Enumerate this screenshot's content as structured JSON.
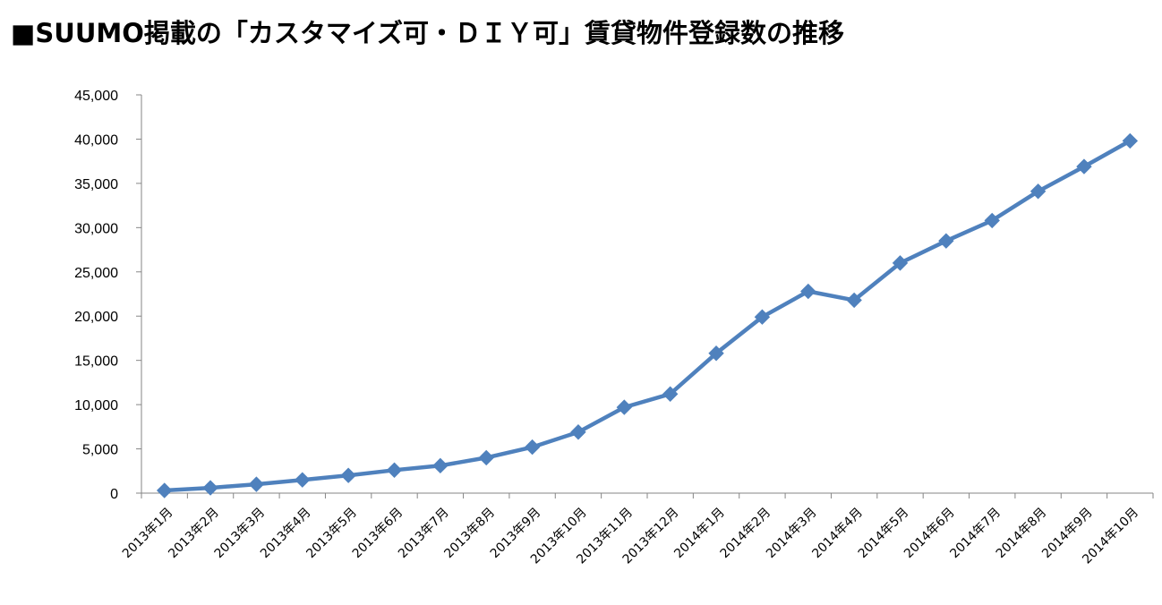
{
  "chart_data": {
    "type": "line",
    "title": "■SUUMO掲載の「カスタマイズ可・ＤＩＹ可」賃貸物件登録数の推移",
    "xlabel": "",
    "ylabel": "",
    "ylim": [
      0,
      45000
    ],
    "yticks": [
      "0",
      "5,000",
      "10,000",
      "15,000",
      "20,000",
      "25,000",
      "30,000",
      "35,000",
      "40,000",
      "45,000"
    ],
    "grid": false,
    "legend": "none",
    "categories": [
      "2013年1月",
      "2013年2月",
      "2013年3月",
      "2013年4月",
      "2013年5月",
      "2013年6月",
      "2013年7月",
      "2013年8月",
      "2013年9月",
      "2013年10月",
      "2013年11月",
      "2013年12月",
      "2014年1月",
      "2014年2月",
      "2014年3月",
      "2014年4月",
      "2014年5月",
      "2014年6月",
      "2014年7月",
      "2014年8月",
      "2014年9月",
      "2014年10月"
    ],
    "series": [
      {
        "values": [
          300,
          600,
          1000,
          1500,
          2000,
          2600,
          3100,
          4000,
          5200,
          6900,
          9700,
          11200,
          15800,
          19900,
          22800,
          21800,
          26000,
          28500,
          30800,
          34100,
          36900,
          39800
        ],
        "color": "#4f81bd",
        "marker": "diamond"
      }
    ]
  }
}
